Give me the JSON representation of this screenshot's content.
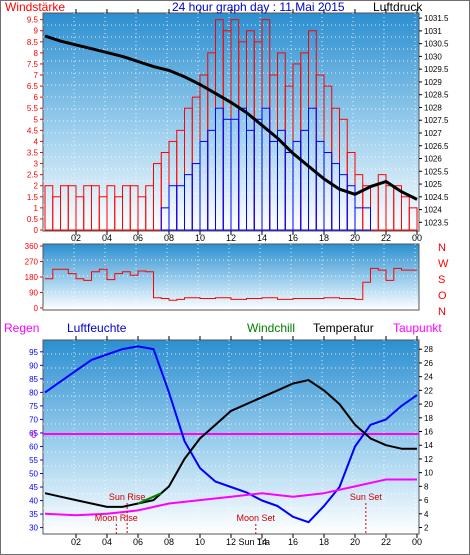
{
  "chart_data": [
    {
      "type": "line",
      "title": "24 hour graph day : 11 Mai 2015",
      "left_axis": {
        "label": "Windstärke",
        "ticks": [
          "0",
          "0.5",
          "1",
          "1.5",
          "2",
          "2.5",
          "3",
          "3.5",
          "4",
          "4.5",
          "5",
          "5.5",
          "6",
          "6.5",
          "7",
          "7.5",
          "8",
          "8.5",
          "9",
          "9.5"
        ],
        "range": [
          0,
          9.8
        ]
      },
      "right_axis": {
        "label": "Luftdruck",
        "ticks": [
          "1023.5",
          "1024",
          "1024.5",
          "1025",
          "1025.5",
          "1026",
          "1026.5",
          "1027",
          "1027.5",
          "1028",
          "1028.5",
          "1029",
          "1029.5",
          "1030",
          "1030.5",
          "1031",
          "1031.5"
        ],
        "range": [
          1023.2,
          1031.7
        ]
      },
      "x_ticks": [
        "02",
        "04",
        "06",
        "08",
        "10",
        "12",
        "14",
        "16",
        "18",
        "20",
        "22",
        "00"
      ],
      "series": [
        {
          "name": "Windstärke",
          "color": "#ff0000",
          "x": [
            0,
            0.5,
            1,
            1.5,
            2,
            2.5,
            3,
            3.5,
            4,
            4.5,
            5,
            5.5,
            6,
            6.5,
            7,
            7.5,
            8,
            8.5,
            9,
            9.5,
            10,
            10.5,
            11,
            11.5,
            12,
            12.5,
            13,
            13.5,
            14,
            14.5,
            15,
            15.5,
            16,
            16.5,
            17,
            17.5,
            18,
            18.5,
            19,
            19.5,
            20,
            20.5,
            21,
            21.5,
            22,
            22.5,
            23,
            23.5,
            24
          ],
          "values": [
            2,
            1.5,
            2,
            2,
            1.5,
            2,
            2,
            1.5,
            2,
            1.5,
            2,
            2,
            1.5,
            2,
            3,
            3.5,
            4,
            4.5,
            5.5,
            6,
            7,
            8,
            9.5,
            9,
            9.5,
            8.5,
            9,
            8.5,
            9.5,
            7,
            8,
            6.5,
            7.5,
            8,
            9,
            7,
            6.5,
            5.5,
            5,
            3.5,
            2.5,
            2,
            2,
            2.5,
            2,
            2,
            1.5,
            1,
            0.5
          ]
        },
        {
          "name": "Windstärke (min)",
          "color": "#0000ff",
          "x": [
            0,
            1,
            2,
            3,
            4,
            5,
            6,
            7,
            7.5,
            8,
            8.5,
            9,
            9.5,
            10,
            10.5,
            11,
            11.5,
            12,
            12.5,
            13,
            13.5,
            14,
            14.5,
            15,
            15.5,
            16,
            16.5,
            17,
            17.5,
            18,
            18.5,
            19,
            19.5,
            20,
            21,
            22,
            23,
            24
          ],
          "values": [
            0,
            0,
            0,
            0,
            0,
            0,
            0,
            0,
            1,
            2,
            2,
            2.5,
            3,
            4,
            4.5,
            5.5,
            5,
            5,
            5.5,
            4.5,
            5,
            5.5,
            4,
            4.5,
            3.5,
            4,
            4.5,
            5.5,
            4,
            3.5,
            3,
            2.5,
            2,
            1,
            0,
            0,
            0,
            0
          ]
        },
        {
          "name": "Luftdruck",
          "color": "#000000",
          "x": [
            0,
            1,
            2,
            3,
            4,
            5,
            6,
            7,
            8,
            9,
            10,
            11,
            12,
            13,
            14,
            15,
            16,
            17,
            18,
            19,
            20,
            21,
            22,
            23,
            24
          ],
          "values": [
            1030.8,
            1030.6,
            1030.45,
            1030.3,
            1030.15,
            1030.0,
            1029.8,
            1029.6,
            1029.45,
            1029.2,
            1028.9,
            1028.55,
            1028.2,
            1027.8,
            1027.3,
            1026.8,
            1026.2,
            1025.7,
            1025.2,
            1024.8,
            1024.6,
            1024.9,
            1025.1,
            1024.7,
            1024.4
          ]
        }
      ]
    },
    {
      "type": "line",
      "title": "",
      "y_ticks": [
        "0",
        "90",
        "180",
        "270",
        "360"
      ],
      "compass": [
        "N",
        "W",
        "S",
        "O",
        "N"
      ],
      "range": [
        0,
        360
      ],
      "series": [
        {
          "name": "Windrichtung",
          "color": "#ff0000",
          "x": [
            0,
            0.5,
            1,
            1.5,
            2,
            2.5,
            3,
            3.5,
            4,
            4.5,
            5,
            5.5,
            6,
            6.5,
            7,
            7.5,
            8,
            8.5,
            9,
            10,
            11,
            12,
            13,
            14,
            15,
            16,
            17,
            18,
            19,
            20,
            20.5,
            21,
            21.5,
            22,
            22.5,
            23,
            24
          ],
          "values": [
            170,
            225,
            225,
            200,
            170,
            160,
            210,
            225,
            165,
            200,
            210,
            190,
            215,
            210,
            60,
            55,
            45,
            50,
            60,
            55,
            60,
            50,
            55,
            60,
            50,
            55,
            55,
            60,
            55,
            50,
            150,
            230,
            220,
            160,
            230,
            220,
            220
          ]
        }
      ]
    },
    {
      "type": "line",
      "labels": {
        "rain": "Regen",
        "humidity": "Luftfeuchte",
        "windchill": "Windchill",
        "temperature": "Temperatur",
        "dewpoint": "Taupunkt"
      },
      "left_axis": {
        "ticks": [
          "30",
          "35",
          "40",
          "45",
          "50",
          "55",
          "60",
          "65",
          "70",
          "75",
          "80",
          "85",
          "90",
          "95"
        ],
        "range": [
          28,
          99
        ]
      },
      "right_axis": {
        "ticks": [
          "2",
          "4",
          "6",
          "8",
          "10",
          "12",
          "14",
          "16",
          "18",
          "20",
          "22",
          "24",
          "26",
          "28"
        ],
        "range": [
          1.2,
          29.2
        ]
      },
      "rain_zero_label": "0",
      "x_ticks": [
        "02",
        "04",
        "06",
        "08",
        "10",
        "12",
        "14",
        "16",
        "18",
        "20",
        "22",
        "00"
      ],
      "astro": [
        {
          "label": "Moon Rise",
          "x": 4.6,
          "level": 0
        },
        {
          "label": "Sun Rise",
          "x": 5.3,
          "level": 1
        },
        {
          "label": "Moon Set",
          "x": 13.6,
          "level": 0
        },
        {
          "label": "Sun Set",
          "x": 20.7,
          "level": 1
        },
        {
          "label": "Sun Tra",
          "x": 13.5,
          "level": 2
        }
      ],
      "series": [
        {
          "name": "Luftfeuchte",
          "color": "#0000ff",
          "axis": "left",
          "x": [
            0,
            1,
            2,
            3,
            4,
            5,
            6,
            7,
            8,
            9,
            10,
            11,
            12,
            13,
            14,
            15,
            16,
            17,
            18,
            19,
            20,
            21,
            22,
            23,
            24
          ],
          "values": [
            80,
            84,
            88,
            92,
            94,
            96,
            97,
            96,
            80,
            62,
            52,
            47,
            45,
            43,
            40,
            38,
            34,
            32,
            38,
            45,
            60,
            68,
            70,
            75,
            79
          ]
        },
        {
          "name": "Temperatur",
          "color": "#000000",
          "axis": "right",
          "x": [
            0,
            1,
            2,
            3,
            4,
            5,
            6,
            7,
            8,
            9,
            10,
            11,
            12,
            13,
            14,
            15,
            16,
            17,
            18,
            19,
            20,
            21,
            22,
            23,
            24
          ],
          "values": [
            7,
            6.5,
            6,
            5.5,
            5,
            5,
            5.5,
            6,
            8,
            12,
            15,
            17,
            19,
            20,
            21,
            22,
            23,
            23.5,
            22,
            20,
            17,
            15,
            14,
            13.5,
            13.5
          ]
        },
        {
          "name": "Windchill",
          "color": "#008000",
          "axis": "right",
          "x": [
            6,
            6.5,
            7,
            7.5
          ],
          "values": [
            5.5,
            6,
            6.5,
            7
          ]
        },
        {
          "name": "Taupunkt",
          "color": "#ff00ff",
          "axis": "right",
          "x": [
            0,
            2,
            4,
            6,
            8,
            10,
            12,
            14,
            16,
            18,
            20,
            22,
            24
          ],
          "values": [
            4,
            3.8,
            4,
            4.5,
            5.5,
            6,
            6.5,
            7,
            6.5,
            7,
            8,
            9,
            9
          ]
        }
      ]
    }
  ]
}
